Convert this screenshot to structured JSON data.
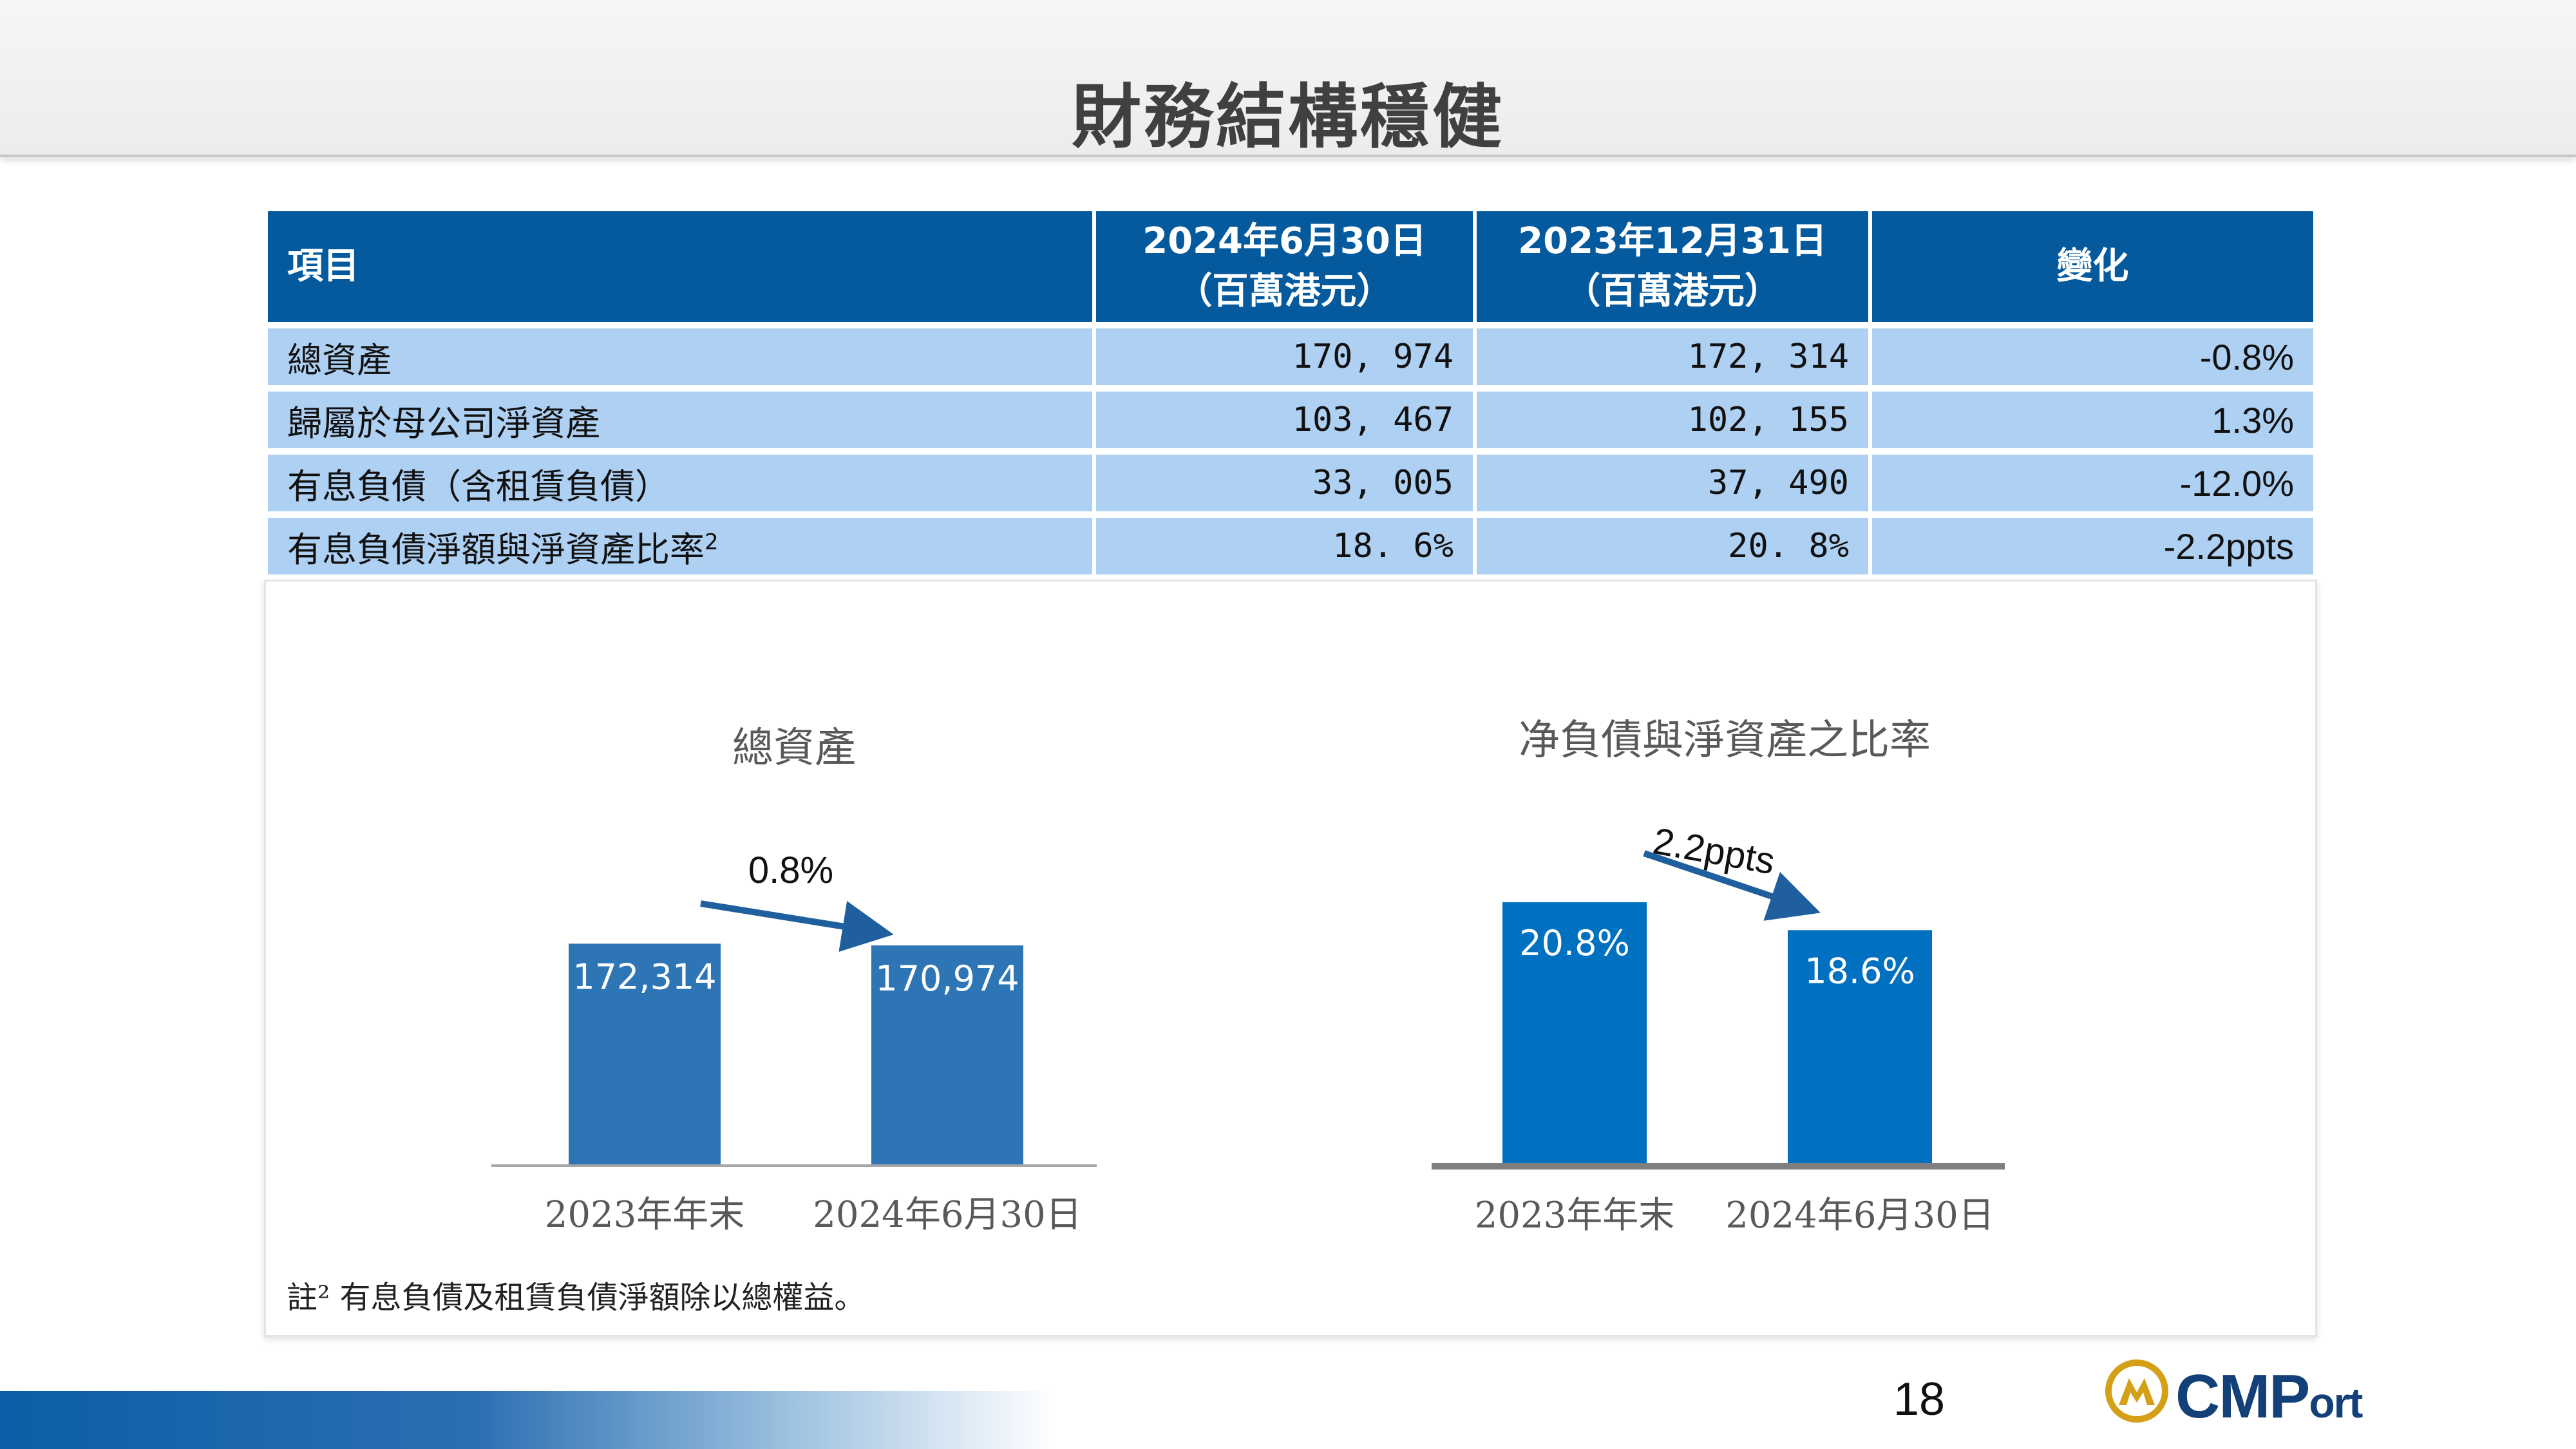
{
  "page": {
    "title": "財務結構穩健",
    "page_number": "18",
    "logo_text": "CMP",
    "logo_text_small": "ort",
    "footnote": "註² 有息負債及租賃負債淨額除以總權益。"
  },
  "table": {
    "headers": {
      "item": "項目",
      "col1_line1": "2024年6月30日",
      "col1_line2": "（百萬港元）",
      "col2_line1": "2023年12月31日",
      "col2_line2": "（百萬港元）",
      "col3": "變化"
    },
    "rows": [
      {
        "item": "總資產",
        "sup": "",
        "v2024": "170, 974",
        "v2023": "172, 314",
        "change": "-0.8%"
      },
      {
        "item": "歸屬於母公司淨資產",
        "sup": "",
        "v2024": "103, 467",
        "v2023": "102, 155",
        "change": "1.3%"
      },
      {
        "item": "有息負債（含租賃負債）",
        "sup": "",
        "v2024": "33, 005",
        "v2023": "37, 490",
        "change": "-12.0%"
      },
      {
        "item": "有息負債淨額與淨資產比率",
        "sup": "2",
        "v2024": "18. 6%",
        "v2023": "20. 8%",
        "change": "-2.2ppts"
      }
    ]
  },
  "chart_data": [
    {
      "type": "bar",
      "title": "總資產",
      "categories": [
        "2023年年末",
        "2024年6月30日"
      ],
      "values": [
        172314,
        170974
      ],
      "value_labels": [
        "172,314",
        "170,974"
      ],
      "change_label": "0.8%",
      "ylim": [
        0,
        175000
      ],
      "color": "#2e75b6",
      "axis_color": "#a6a6a6"
    },
    {
      "type": "bar",
      "title": "净負債與淨資產之比率",
      "categories": [
        "2023年年末",
        "2024年6月30日"
      ],
      "values": [
        20.8,
        18.6
      ],
      "value_labels": [
        "20.8%",
        "18.6%"
      ],
      "change_label": "2.2ppts",
      "ylim": [
        0,
        20.8
      ],
      "color": "#0070c0",
      "axis_color": "#7f7f7f"
    }
  ],
  "colors": {
    "table_header": "#045a9c",
    "table_row": "#aed0f2",
    "arrow": "#1f5f9e"
  }
}
